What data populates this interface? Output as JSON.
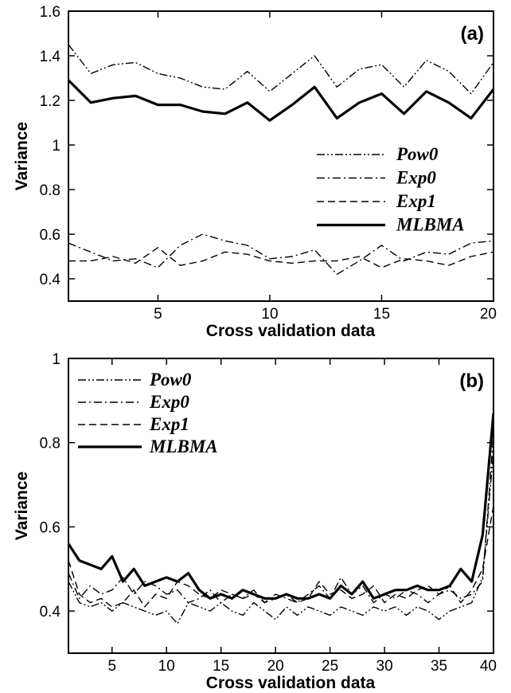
{
  "chart_data": [
    {
      "type": "line",
      "panel_label": "(a)",
      "xlabel": "Cross validation data",
      "ylabel": "Variance",
      "xlim": [
        1,
        20
      ],
      "ylim": [
        0.3,
        1.6
      ],
      "xticks": [
        5,
        10,
        15,
        20
      ],
      "yticks": [
        0.4,
        0.6,
        0.8,
        1,
        1.2,
        1.4,
        1.6
      ],
      "ytick_labels": [
        "0.4",
        "0.6",
        "0.8",
        "1",
        "1.2",
        "1.4",
        "1.6"
      ],
      "legend_position": "right-middle",
      "grid": false,
      "x": [
        1,
        2,
        3,
        4,
        5,
        6,
        7,
        8,
        9,
        10,
        11,
        12,
        13,
        14,
        15,
        16,
        17,
        18,
        19,
        20
      ],
      "series": [
        {
          "name": "Pow0",
          "style": "dash-dot-dot",
          "values": [
            1.45,
            1.32,
            1.36,
            1.37,
            1.32,
            1.3,
            1.26,
            1.25,
            1.33,
            1.24,
            1.32,
            1.4,
            1.26,
            1.34,
            1.36,
            1.26,
            1.38,
            1.33,
            1.23,
            1.37
          ]
        },
        {
          "name": "Exp0",
          "style": "dash-dot",
          "values": [
            0.56,
            0.52,
            0.48,
            0.49,
            0.45,
            0.55,
            0.6,
            0.57,
            0.55,
            0.49,
            0.5,
            0.53,
            0.42,
            0.48,
            0.55,
            0.48,
            0.52,
            0.51,
            0.56,
            0.57
          ]
        },
        {
          "name": "Exp1",
          "style": "dashed",
          "values": [
            0.48,
            0.48,
            0.5,
            0.47,
            0.54,
            0.46,
            0.48,
            0.52,
            0.51,
            0.48,
            0.47,
            0.48,
            0.48,
            0.5,
            0.45,
            0.49,
            0.48,
            0.46,
            0.5,
            0.52
          ]
        },
        {
          "name": "MLBMA",
          "style": "solid",
          "values": [
            1.29,
            1.19,
            1.21,
            1.22,
            1.18,
            1.18,
            1.15,
            1.14,
            1.19,
            1.11,
            1.18,
            1.26,
            1.12,
            1.19,
            1.23,
            1.14,
            1.24,
            1.19,
            1.12,
            1.25
          ]
        }
      ]
    },
    {
      "type": "line",
      "panel_label": "(b)",
      "xlabel": "Cross validation data",
      "ylabel": "Variance",
      "xlim": [
        1,
        40
      ],
      "ylim": [
        0.3,
        1.0
      ],
      "xticks": [
        5,
        10,
        15,
        20,
        25,
        30,
        35,
        40
      ],
      "yticks": [
        0.4,
        0.6,
        0.8,
        1.0
      ],
      "ytick_labels": [
        "0.4",
        "0.6",
        "0.8",
        "1"
      ],
      "legend_position": "top-left",
      "grid": false,
      "x": [
        1,
        2,
        3,
        4,
        5,
        6,
        7,
        8,
        9,
        10,
        11,
        12,
        13,
        14,
        15,
        16,
        17,
        18,
        19,
        20,
        21,
        22,
        23,
        24,
        25,
        26,
        27,
        28,
        29,
        30,
        31,
        32,
        33,
        34,
        35,
        36,
        37,
        38,
        39,
        40
      ],
      "series": [
        {
          "name": "Pow0",
          "style": "dash-dot-dot",
          "values": [
            0.47,
            0.42,
            0.41,
            0.42,
            0.4,
            0.42,
            0.41,
            0.4,
            0.39,
            0.4,
            0.37,
            0.42,
            0.41,
            0.4,
            0.42,
            0.4,
            0.39,
            0.42,
            0.4,
            0.38,
            0.41,
            0.39,
            0.41,
            0.4,
            0.39,
            0.41,
            0.4,
            0.39,
            0.41,
            0.4,
            0.41,
            0.39,
            0.41,
            0.4,
            0.38,
            0.4,
            0.41,
            0.42,
            0.48,
            0.78
          ]
        },
        {
          "name": "Exp0",
          "style": "dash-dot",
          "values": [
            0.49,
            0.43,
            0.46,
            0.44,
            0.45,
            0.48,
            0.44,
            0.47,
            0.46,
            0.44,
            0.45,
            0.42,
            0.43,
            0.45,
            0.42,
            0.44,
            0.43,
            0.45,
            0.42,
            0.44,
            0.43,
            0.42,
            0.44,
            0.46,
            0.43,
            0.48,
            0.44,
            0.46,
            0.42,
            0.44,
            0.43,
            0.45,
            0.44,
            0.42,
            0.44,
            0.45,
            0.43,
            0.44,
            0.47,
            0.82
          ]
        },
        {
          "name": "Exp1",
          "style": "dashed",
          "values": [
            0.52,
            0.44,
            0.42,
            0.43,
            0.41,
            0.42,
            0.45,
            0.41,
            0.44,
            0.43,
            0.47,
            0.46,
            0.44,
            0.43,
            0.45,
            0.44,
            0.43,
            0.44,
            0.42,
            0.43,
            0.44,
            0.42,
            0.43,
            0.47,
            0.44,
            0.45,
            0.43,
            0.44,
            0.46,
            0.42,
            0.44,
            0.43,
            0.45,
            0.46,
            0.44,
            0.46,
            0.42,
            0.45,
            0.5,
            0.65
          ]
        },
        {
          "name": "MLBMA",
          "style": "solid",
          "values": [
            0.56,
            0.52,
            0.51,
            0.5,
            0.53,
            0.47,
            0.5,
            0.46,
            0.47,
            0.48,
            0.47,
            0.49,
            0.45,
            0.43,
            0.44,
            0.43,
            0.45,
            0.44,
            0.43,
            0.43,
            0.44,
            0.43,
            0.43,
            0.44,
            0.43,
            0.46,
            0.44,
            0.47,
            0.43,
            0.44,
            0.45,
            0.45,
            0.46,
            0.45,
            0.45,
            0.46,
            0.5,
            0.47,
            0.58,
            0.87
          ]
        }
      ]
    }
  ]
}
